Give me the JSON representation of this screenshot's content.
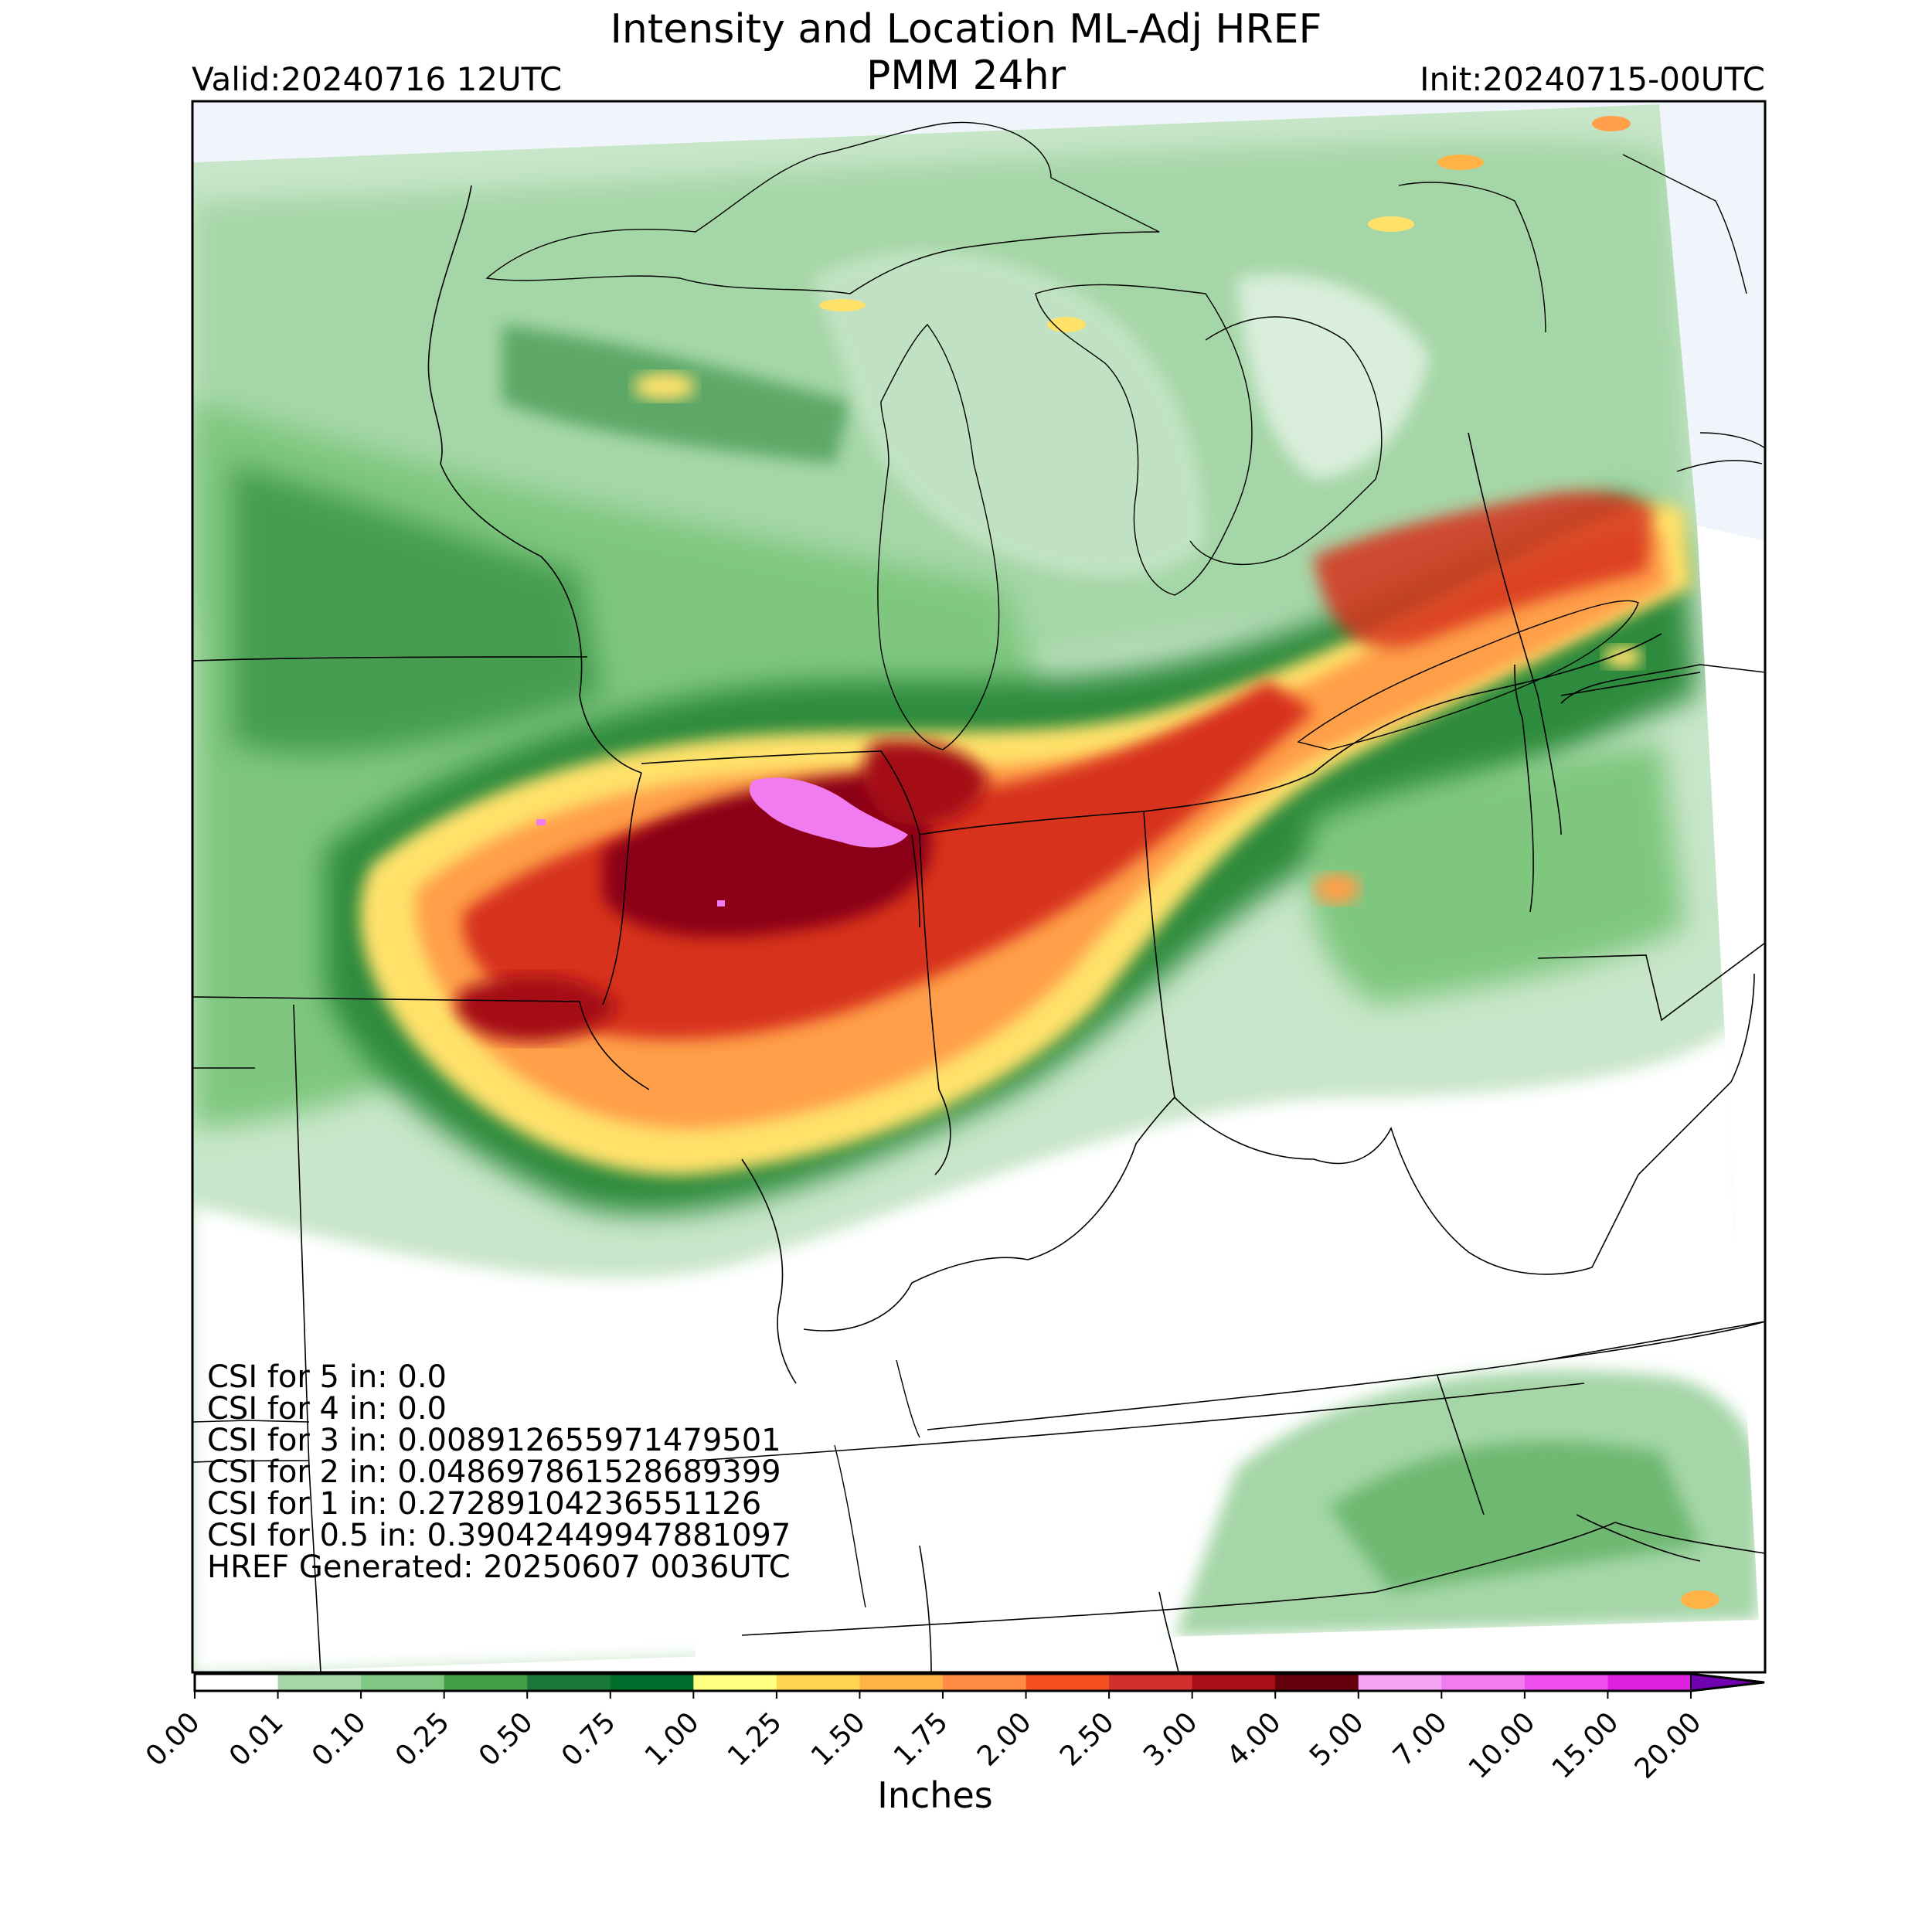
{
  "header": {
    "title_line1": "Intensity and Location ML-Adj HREF",
    "title_line2": "PMM 24hr",
    "valid": "Valid:20240716 12UTC",
    "init": "Init:20240715-00UTC"
  },
  "stats": [
    "CSI for 5 in: 0.0",
    "CSI for 4 in: 0.0",
    "CSI for 3 in: 0.008912655971479501",
    "CSI for 2 in: 0.048697861528689399",
    "CSI for 1 in: 0.2728910423655112​6",
    "CSI for 0.5 in: 0.39042449947881097",
    "HREF Generated: 20250607 0036UTC"
  ],
  "colorbar": {
    "label": "Inches",
    "ticks": [
      "0.00",
      "0.01",
      "0.10",
      "0.25",
      "0.50",
      "0.75",
      "1.00",
      "1.25",
      "1.50",
      "1.75",
      "2.00",
      "2.50",
      "3.00",
      "4.00",
      "5.00",
      "7.00",
      "10.00",
      "15.00",
      "20.00"
    ],
    "colors": [
      "#ffffff",
      "#c8e6c9",
      "#a5d6a7",
      "#81c784",
      "#43a047",
      "#1b7837",
      "#006d2c",
      "#ffff80",
      "#ffd54f",
      "#ffb347",
      "#ff8c42",
      "#f4511e",
      "#d32f2f",
      "#a50f15",
      "#67000d",
      "#f5a3f5",
      "#f07cf0",
      "#f04ff0",
      "#e020e0",
      "#b010d0",
      "#8000c0"
    ],
    "extend_color": "#7000b0"
  },
  "legend_colors": {
    "land_bg": "#ffffff",
    "water_bg": "#eef3fb",
    "light_green": "#c8e6c9",
    "mid_green": "#8fd18f",
    "dark_green": "#2e8b3e",
    "deep_green": "#0b6b2b",
    "yellow": "#ffe16a",
    "orange": "#ff9f4a",
    "red": "#d7301f",
    "dark_red": "#8b0012",
    "pink": "#f07cf0"
  }
}
